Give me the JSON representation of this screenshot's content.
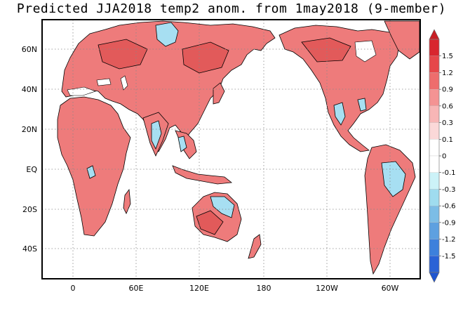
{
  "title": "Predicted JJA2018 temp2 anom. from 1may2018 (9-member)",
  "map": {
    "lon_ticks": [
      "0",
      "60E",
      "120E",
      "180",
      "120W",
      "60W"
    ],
    "lat_ticks": [
      "60N",
      "40N",
      "20N",
      "EQ",
      "20S",
      "40S"
    ],
    "gridlines": true,
    "grid_style": "dotted"
  },
  "colorbar": {
    "labels": [
      "1.5",
      "1.2",
      "0.9",
      "0.6",
      "0.3",
      "0.1",
      "0",
      "-0.1",
      "-0.3",
      "-0.6",
      "-0.9",
      "-1.2",
      "-1.5"
    ],
    "colors": [
      "#d8262e",
      "#e6474a",
      "#ee6d6d",
      "#f49393",
      "#f8b6b6",
      "#fbd8d8",
      "#ffffff",
      "#ffffff",
      "#ccf2f8",
      "#9fdcef",
      "#7cbde6",
      "#5ea0e0",
      "#3d80dc",
      "#2a62d6"
    ],
    "end_top_color": "#c81e24",
    "end_bottom_color": "#1f55d0"
  },
  "colors": {
    "warm_land": "#ee7b7b",
    "hot_land": "#e25a5a",
    "mild_land": "#f7b3b3",
    "cool_land": "#a7dff2",
    "cold_land": "#6aa8e6",
    "border": "#000000"
  }
}
